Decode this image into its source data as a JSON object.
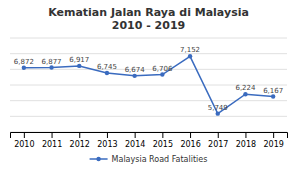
{
  "chart_data": {
    "type": "line",
    "title": "Kematian Jalan Raya di Malaysia\n2010 - 2019",
    "x": [
      2010,
      2011,
      2012,
      2013,
      2014,
      2015,
      2016,
      2017,
      2018,
      2019
    ],
    "series": [
      {
        "name": "Malaysia Road Fatalities",
        "color": "#3a6bbf",
        "marker": "circle",
        "values": [
          6872,
          6877,
          6917,
          6745,
          6674,
          6706,
          7152,
          5749,
          6224,
          6167
        ],
        "value_labels": [
          "6,872",
          "6,877",
          "6,917",
          "6,745",
          "6,674",
          "6,706",
          "7,152",
          "5,749",
          "6,224",
          "6,167"
        ]
      }
    ],
    "xlim": [
      2009.5,
      2019.5
    ],
    "xticks": [
      2010,
      2011,
      2012,
      2013,
      2014,
      2015,
      2016,
      2017,
      2018,
      2019
    ],
    "ylim": [
      5300,
      7600
    ],
    "yticks": [
      5300,
      5683.333333333333,
      6066.666666666667,
      6450,
      6833.333333333333,
      7216.666666666667,
      7600
    ],
    "grid": true,
    "tick_labels": "x",
    "data_labels": true,
    "legend": "bottom"
  }
}
